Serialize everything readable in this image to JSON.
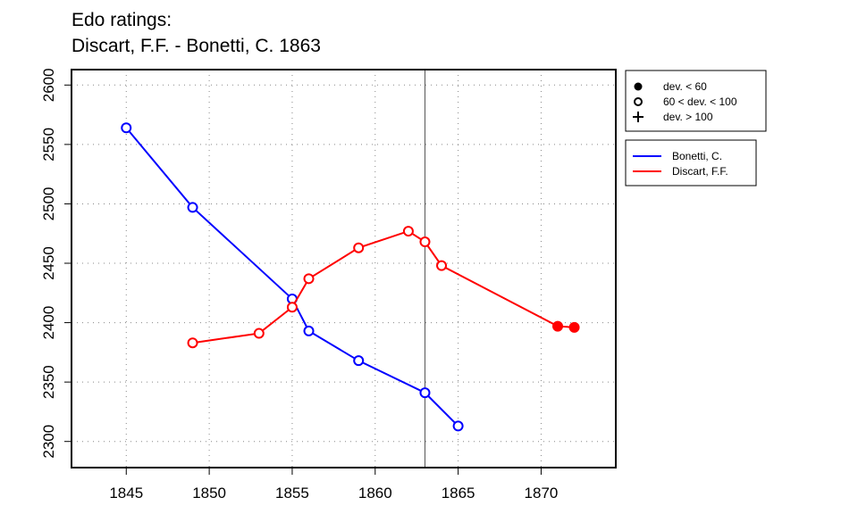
{
  "chart_data": {
    "type": "line",
    "title": [
      "Edo ratings:",
      "Discart, F.F. - Bonetti, C. 1863"
    ],
    "xlabel": "",
    "ylabel": "",
    "xlim": [
      1841.7,
      1874.5
    ],
    "ylim": [
      2278,
      2613
    ],
    "xticks": [
      1845,
      1850,
      1855,
      1860,
      1865,
      1870
    ],
    "yticks": [
      2300,
      2350,
      2400,
      2450,
      2500,
      2550,
      2600
    ],
    "grid": true,
    "vline_x": 1863,
    "series": [
      {
        "name": "Bonetti, C.",
        "color": "#0000ff",
        "points": [
          {
            "x": 1845,
            "y": 2564,
            "marker": "open"
          },
          {
            "x": 1849,
            "y": 2497,
            "marker": "open"
          },
          {
            "x": 1855,
            "y": 2420,
            "marker": "open"
          },
          {
            "x": 1856,
            "y": 2393,
            "marker": "open"
          },
          {
            "x": 1859,
            "y": 2368,
            "marker": "open"
          },
          {
            "x": 1863,
            "y": 2341,
            "marker": "open"
          },
          {
            "x": 1865,
            "y": 2313,
            "marker": "open"
          }
        ]
      },
      {
        "name": "Discart, F.F.",
        "color": "#ff0000",
        "points": [
          {
            "x": 1849,
            "y": 2383,
            "marker": "open"
          },
          {
            "x": 1853,
            "y": 2391,
            "marker": "open"
          },
          {
            "x": 1855,
            "y": 2413,
            "marker": "open"
          },
          {
            "x": 1856,
            "y": 2437,
            "marker": "open"
          },
          {
            "x": 1859,
            "y": 2463,
            "marker": "open"
          },
          {
            "x": 1862,
            "y": 2477,
            "marker": "open"
          },
          {
            "x": 1863,
            "y": 2468,
            "marker": "open"
          },
          {
            "x": 1864,
            "y": 2448,
            "marker": "open"
          },
          {
            "x": 1871,
            "y": 2397,
            "marker": "filled"
          },
          {
            "x": 1872,
            "y": 2396,
            "marker": "filled"
          }
        ]
      }
    ],
    "marker_legend": [
      {
        "symbol": "filled",
        "label": "dev. < 60"
      },
      {
        "symbol": "open",
        "label": "60 < dev. < 100"
      },
      {
        "symbol": "plus",
        "label": "dev. > 100"
      }
    ],
    "legend_position": "right"
  }
}
